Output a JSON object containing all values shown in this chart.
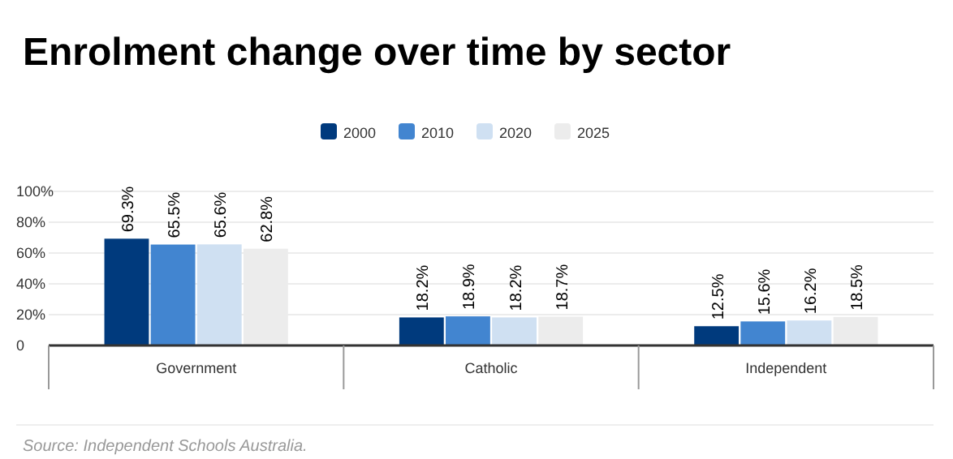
{
  "chart_data": {
    "type": "bar",
    "title": "Enrolment change over time by sector",
    "categories": [
      "Government",
      "Catholic",
      "Independent"
    ],
    "series": [
      {
        "name": "2000",
        "color": "#003a7d",
        "values": [
          69.3,
          18.2,
          12.5
        ],
        "value_labels": [
          "69.3%",
          "18.2%",
          "12.5%"
        ]
      },
      {
        "name": "2010",
        "color": "#4285d0",
        "values": [
          65.5,
          18.9,
          15.6
        ],
        "value_labels": [
          "65.5%",
          "18.9%",
          "15.6%"
        ]
      },
      {
        "name": "2020",
        "color": "#cfe0f2",
        "values": [
          65.6,
          18.2,
          16.2
        ],
        "value_labels": [
          "65.6%",
          "18.2%",
          "16.2%"
        ]
      },
      {
        "name": "2025",
        "color": "#ececec",
        "values": [
          62.8,
          18.7,
          18.5
        ],
        "value_labels": [
          "62.8%",
          "18.7%",
          "18.5%"
        ]
      }
    ],
    "ylim": [
      0,
      100
    ],
    "yticks": [
      {
        "value": 0,
        "label": "0"
      },
      {
        "value": 20,
        "label": "20%"
      },
      {
        "value": 40,
        "label": "40%"
      },
      {
        "value": 60,
        "label": "60%"
      },
      {
        "value": 80,
        "label": "80%"
      },
      {
        "value": 100,
        "label": "100%"
      }
    ],
    "grid": true,
    "legend": "top",
    "annotations": [
      "Source: Independent Schools Australia."
    ]
  }
}
